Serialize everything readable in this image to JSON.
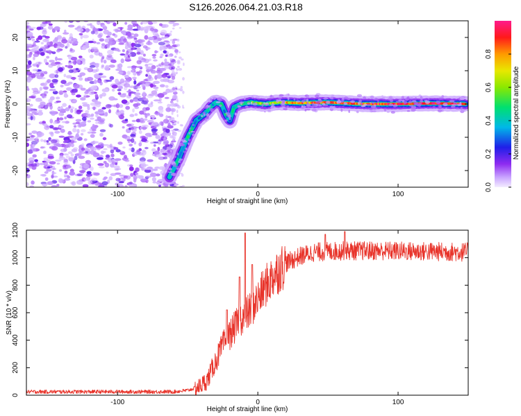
{
  "title": "S126.2026.064.21.03.R18",
  "colors": {
    "line": "#e8332a",
    "colorbar": [
      "#e6d0ff",
      "#8e2bf0",
      "#1f1fe8",
      "#00b8e8",
      "#00e070",
      "#e8e800",
      "#ff9a00",
      "#ff1a1a",
      "#ff1a8c"
    ]
  },
  "chart_data": [
    {
      "type": "heatmap",
      "name": "spectrogram",
      "xlabel": "Height of straight line (km)",
      "ylabel": "Frequency (Hz)",
      "xlim": [
        -165,
        150
      ],
      "ylim": [
        -25,
        25
      ],
      "xticks": [
        -100,
        0,
        100
      ],
      "yticks": [
        -20,
        -10,
        0,
        10,
        20
      ],
      "noise_region": {
        "x_from": -165,
        "x_to": -60
      },
      "ridge": [
        {
          "x": -63,
          "y": -22,
          "amp": 0.35
        },
        {
          "x": -57,
          "y": -17,
          "amp": 0.35
        },
        {
          "x": -50,
          "y": -10,
          "amp": 0.4
        },
        {
          "x": -44,
          "y": -5,
          "amp": 0.4
        },
        {
          "x": -38,
          "y": -3,
          "amp": 0.35
        },
        {
          "x": -34,
          "y": -1,
          "amp": 0.35
        },
        {
          "x": -30,
          "y": 0.5,
          "amp": 0.4
        },
        {
          "x": -26,
          "y": 0,
          "amp": 0.4
        },
        {
          "x": -23,
          "y": -3,
          "amp": 0.4
        },
        {
          "x": -20,
          "y": -5,
          "amp": 0.35
        },
        {
          "x": -17,
          "y": -1,
          "amp": 0.4
        },
        {
          "x": -12,
          "y": 0,
          "amp": 0.5
        },
        {
          "x": -5,
          "y": 0.5,
          "amp": 0.55
        },
        {
          "x": 5,
          "y": 0,
          "amp": 0.6
        },
        {
          "x": 15,
          "y": 0.5,
          "amp": 0.7
        },
        {
          "x": 30,
          "y": 0.3,
          "amp": 0.8
        },
        {
          "x": 50,
          "y": 0.5,
          "amp": 0.85
        },
        {
          "x": 75,
          "y": 0,
          "amp": 0.85
        },
        {
          "x": 100,
          "y": 0,
          "amp": 0.9
        },
        {
          "x": 125,
          "y": 0.2,
          "amp": 0.9
        },
        {
          "x": 148,
          "y": 0,
          "amp": 0.9
        }
      ]
    },
    {
      "type": "line",
      "name": "snr",
      "xlabel": "Height of straight line (km)",
      "ylabel": "SNR (10 * v/v)",
      "xlim": [
        -165,
        150
      ],
      "ylim": [
        0,
        1200
      ],
      "xticks": [
        -100,
        0,
        100
      ],
      "yticks": [
        0,
        200,
        400,
        600,
        800,
        1000,
        1200
      ],
      "trend": [
        {
          "x": -165,
          "y": 25
        },
        {
          "x": -60,
          "y": 25
        },
        {
          "x": -50,
          "y": 35
        },
        {
          "x": -42,
          "y": 60
        },
        {
          "x": -36,
          "y": 110
        },
        {
          "x": -30,
          "y": 250
        },
        {
          "x": -24,
          "y": 380
        },
        {
          "x": -18,
          "y": 470
        },
        {
          "x": -12,
          "y": 560
        },
        {
          "x": -6,
          "y": 610
        },
        {
          "x": 0,
          "y": 700
        },
        {
          "x": 6,
          "y": 800
        },
        {
          "x": 12,
          "y": 880
        },
        {
          "x": 20,
          "y": 960
        },
        {
          "x": 30,
          "y": 1010
        },
        {
          "x": 40,
          "y": 1040
        },
        {
          "x": 60,
          "y": 1050
        },
        {
          "x": 90,
          "y": 1050
        },
        {
          "x": 150,
          "y": 1040
        }
      ],
      "spikes": [
        {
          "x": -9,
          "y": 1180
        },
        {
          "x": -13,
          "y": 860
        },
        {
          "x": -4,
          "y": 950
        },
        {
          "x": -22,
          "y": 620
        },
        {
          "x": 62,
          "y": 1190
        },
        {
          "x": 48,
          "y": 1170
        }
      ]
    }
  ],
  "colorbar": {
    "label": "Normalized spectral amplitude",
    "range": [
      0,
      1
    ],
    "ticks": [
      0.0,
      0.2,
      0.4,
      0.6,
      0.8
    ]
  }
}
